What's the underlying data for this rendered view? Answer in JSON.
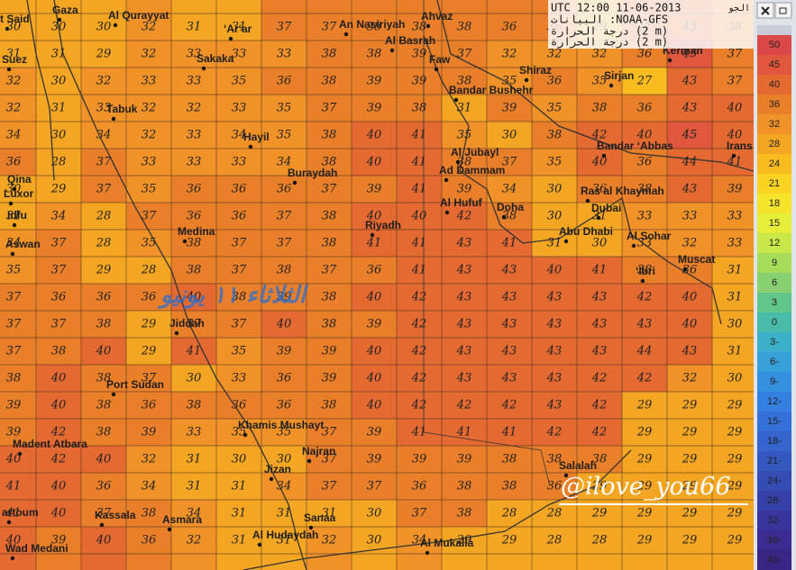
{
  "header": {
    "time": "UTC 12:00 11-06-2013",
    "site": "الجو",
    "source": "NOAA-GFS: البيانات",
    "lines": [
      "درجة الحرارة (2 m)",
      "درجة الحرارة (2 m)"
    ]
  },
  "legend": [
    {
      "value": 50,
      "color": "#dc4848"
    },
    {
      "value": 45,
      "color": "#e0573e"
    },
    {
      "value": 40,
      "color": "#e46a32"
    },
    {
      "value": 36,
      "color": "#ea7f2a"
    },
    {
      "value": 32,
      "color": "#f09228"
    },
    {
      "value": 28,
      "color": "#f4a623"
    },
    {
      "value": 24,
      "color": "#f8bc1f"
    },
    {
      "value": 21,
      "color": "#fad323"
    },
    {
      "value": 18,
      "color": "#f6e42a"
    },
    {
      "value": 15,
      "color": "#e6ee3a"
    },
    {
      "value": 12,
      "color": "#c8e84a"
    },
    {
      "value": 9,
      "color": "#a6dc5a"
    },
    {
      "value": 6,
      "color": "#86d070"
    },
    {
      "value": 3,
      "color": "#62c68a"
    },
    {
      "value": 0,
      "color": "#48bca8"
    },
    {
      "value": -3,
      "label": "3-",
      "color": "#3cb0c8"
    },
    {
      "value": -6,
      "label": "6-",
      "color": "#38a0d8"
    },
    {
      "value": -9,
      "label": "9-",
      "color": "#3690e0"
    },
    {
      "value": -12,
      "label": "12-",
      "color": "#3480e0"
    },
    {
      "value": -15,
      "label": "15-",
      "color": "#3470d8"
    },
    {
      "value": -18,
      "label": "18-",
      "color": "#3464cc"
    },
    {
      "value": -21,
      "label": "21-",
      "color": "#3458c0"
    },
    {
      "value": -24,
      "label": "24-",
      "color": "#344cb4"
    },
    {
      "value": -28,
      "label": "28-",
      "color": "#3640a8"
    },
    {
      "value": -32,
      "label": "32-",
      "color": "#38369c"
    },
    {
      "value": -36,
      "label": "36-",
      "color": "#3a2c90"
    },
    {
      "value": -40,
      "label": "40-",
      "color": "#3a2484"
    }
  ],
  "grid": {
    "rows": [
      [
        30,
        30,
        30,
        32,
        31,
        31,
        37,
        37,
        38,
        38,
        38,
        36,
        36,
        29,
        41,
        43,
        38
      ],
      [
        31,
        31,
        29,
        32,
        33,
        33,
        33,
        38,
        38,
        39,
        37,
        32,
        32,
        32,
        36,
        45,
        37
      ],
      [
        32,
        30,
        32,
        33,
        33,
        35,
        36,
        38,
        39,
        39,
        38,
        35,
        36,
        35,
        27,
        43,
        37
      ],
      [
        32,
        31,
        33,
        32,
        32,
        33,
        35,
        37,
        39,
        38,
        31,
        39,
        35,
        38,
        36,
        43,
        40
      ],
      [
        34,
        30,
        34,
        32,
        33,
        34,
        35,
        38,
        40,
        41,
        35,
        30,
        38,
        42,
        40,
        45,
        40
      ],
      [
        36,
        28,
        37,
        33,
        33,
        33,
        34,
        38,
        40,
        41,
        38,
        37,
        35,
        40,
        36,
        44,
        41
      ],
      [
        30,
        29,
        37,
        35,
        36,
        36,
        36,
        37,
        39,
        41,
        39,
        34,
        30,
        36,
        38,
        43,
        39
      ],
      [
        31,
        34,
        28,
        37,
        36,
        36,
        37,
        38,
        40,
        40,
        42,
        38,
        30,
        31,
        33,
        33,
        33
      ],
      [
        34,
        37,
        28,
        35,
        38,
        37,
        37,
        38,
        41,
        41,
        43,
        41,
        31,
        30,
        33,
        32,
        33
      ],
      [
        35,
        37,
        29,
        28,
        38,
        37,
        38,
        37,
        36,
        41,
        43,
        43,
        40,
        41,
        38,
        36,
        31
      ],
      [
        37,
        36,
        36,
        36,
        40,
        38,
        39,
        38,
        40,
        42,
        43,
        43,
        43,
        43,
        42,
        40,
        31
      ],
      [
        37,
        37,
        38,
        29,
        37,
        37,
        40,
        38,
        39,
        42,
        43,
        43,
        43,
        43,
        43,
        40,
        30
      ],
      [
        37,
        38,
        40,
        29,
        41,
        35,
        39,
        39,
        40,
        42,
        43,
        43,
        43,
        43,
        44,
        43,
        31
      ],
      [
        38,
        40,
        38,
        37,
        30,
        33,
        36,
        39,
        40,
        42,
        43,
        43,
        43,
        42,
        42,
        32,
        30
      ],
      [
        39,
        40,
        38,
        36,
        38,
        36,
        36,
        38,
        40,
        42,
        42,
        42,
        43,
        42,
        29,
        29,
        29
      ],
      [
        39,
        42,
        38,
        39,
        33,
        35,
        35,
        37,
        39,
        41,
        41,
        41,
        42,
        42,
        29,
        29,
        29
      ],
      [
        40,
        42,
        40,
        32,
        31,
        30,
        30,
        37,
        39,
        39,
        39,
        38,
        38,
        38,
        29,
        29,
        29
      ],
      [
        41,
        40,
        36,
        34,
        31,
        31,
        34,
        37,
        37,
        36,
        38,
        38,
        36,
        29,
        29,
        29,
        29
      ],
      [
        41,
        40,
        37,
        38,
        34,
        31,
        31,
        31,
        30,
        37,
        38,
        28,
        28,
        29,
        29,
        29,
        29
      ],
      [
        40,
        39,
        40,
        36,
        32,
        31,
        31,
        32,
        30,
        34,
        29,
        29,
        28,
        28,
        29,
        29,
        29
      ]
    ]
  },
  "cities": [
    "t Said",
    "Gaza",
    "Al Qurayyat",
    "‘Ar‘ar",
    "An Nasiriyah",
    "Ahvaz",
    "Al Basrah",
    "Suez",
    "Sakaka",
    "Faw",
    "Shiraz",
    "Bandar Bushehr",
    "Sirjan",
    "Kerman",
    "Tabuk",
    "Hayil",
    "Bandar ‘Abbas",
    "Irans",
    "Qina",
    "Luxor",
    "Buraydah",
    "Al Jubayl",
    "Ad Dammam",
    "Ras al Khaymah",
    "Idfu",
    "Al Hufuf",
    "Doha",
    "Dubai",
    "Aswan",
    "Medina",
    "Riyadh",
    "Abu Dhabi",
    "Al Sohar",
    "Muscat",
    "‘Ibri",
    "Jiddah",
    "Port Sudan",
    "Khamis Mushayt",
    "Madent Atbara",
    "Najran",
    "Jizan",
    "Salalah",
    "artoum",
    "Kassala",
    "Asmara",
    "Sanaa",
    "Al Hudaydah",
    "Wad Medani",
    "Al Mukalla"
  ],
  "watermarks": {
    "handle": "@ilove_you66",
    "date": "الثلاثاء ١١ يونيو"
  }
}
